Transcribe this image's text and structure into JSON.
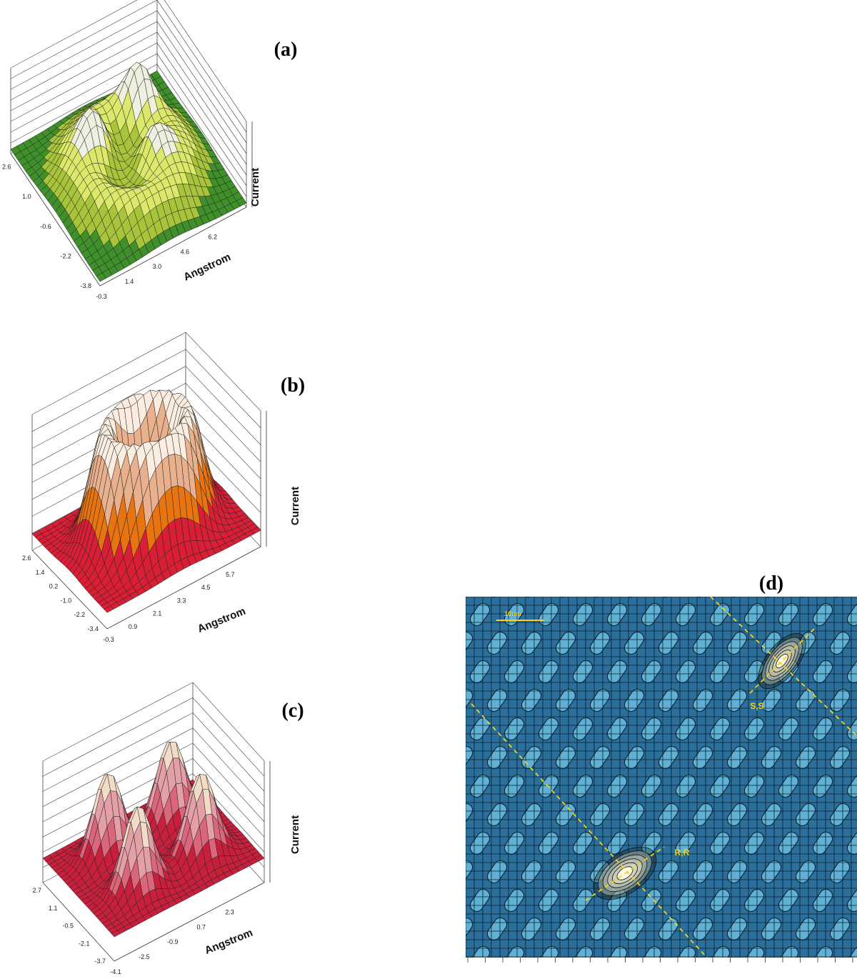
{
  "panels": [
    {
      "label": "(a)",
      "z_axis": "Current",
      "axis": "Angstrom",
      "left_ticks": [
        "2.6",
        "1.0",
        "-0.6",
        "-2.2",
        "-3.8"
      ],
      "bottom_ticks": [
        "-0.3",
        "1.4",
        "3.0",
        "4.6",
        "6.2"
      ]
    },
    {
      "label": "(b)",
      "z_axis": "Current",
      "axis": "Angstrom",
      "left_ticks": [
        "2.6",
        "1.4",
        "0.2",
        "-1.0",
        "-2.2",
        "-3.4"
      ],
      "bottom_ticks": [
        "-0.3",
        "0.9",
        "2.1",
        "3.3",
        "4.5",
        "5.7"
      ]
    },
    {
      "label": "(c)",
      "z_axis": "Current",
      "axis": "Angstrom",
      "left_ticks": [
        "2.7",
        "1.1",
        "-0.5",
        "-2.1",
        "-3.7"
      ],
      "bottom_ticks": [
        "-4.1",
        "-2.5",
        "-0.9",
        "0.7",
        "2.3"
      ]
    }
  ],
  "image": {
    "label": "(d)",
    "scale_bar": "10nm",
    "markers": [
      "S,S",
      "R,R"
    ]
  }
}
